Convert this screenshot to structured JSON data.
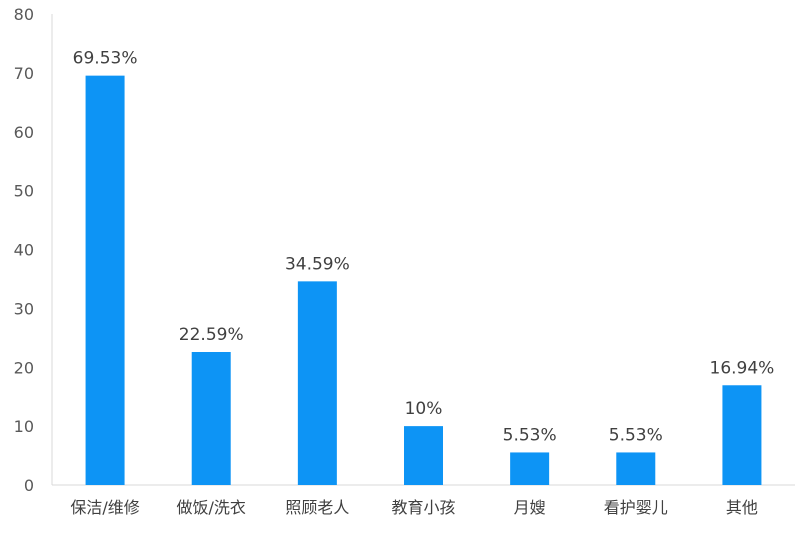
{
  "chart_data": {
    "type": "bar",
    "categories": [
      "保洁/维修",
      "做饭/洗衣",
      "照顾老人",
      "教育小孩",
      "月嫂",
      "看护婴儿",
      "其他"
    ],
    "values": [
      69.53,
      22.59,
      34.59,
      10,
      5.53,
      5.53,
      16.94
    ],
    "data_labels": [
      "69.53%",
      "22.59%",
      "34.59%",
      "10%",
      "5.53%",
      "5.53%",
      "16.94%"
    ],
    "ylim": [
      0,
      80
    ],
    "yticks": [
      0,
      10,
      20,
      30,
      40,
      50,
      60,
      70,
      80
    ],
    "grid": false,
    "legend": "none",
    "bar_color": "#0d94f5",
    "axis_color": "#d9d9d9"
  }
}
